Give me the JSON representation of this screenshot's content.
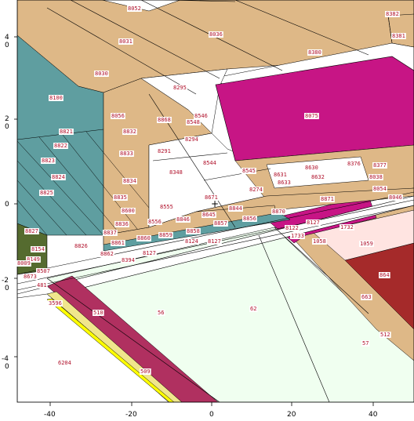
{
  "x_axis": {
    "ticks": [
      "-40",
      "-20",
      "0",
      "20",
      "40"
    ]
  },
  "y_axis": {
    "ticks": [
      {
        "lines": [
          "4",
          "0"
        ]
      },
      {
        "lines": [
          "2",
          "0"
        ]
      },
      {
        "lines": [
          "0"
        ]
      },
      {
        "lines": [
          "-2",
          "0"
        ]
      },
      {
        "lines": [
          "-4",
          "0"
        ]
      }
    ]
  },
  "cursor": {
    "symbol": "+"
  },
  "zone_colors": {
    "tan": "#deb887",
    "teal": "#5f9ea0",
    "magenta": "#c71585",
    "brown": "#a52a2a",
    "honeydew": "#f0fff0",
    "olive": "#556b2f",
    "yellow": "#ffff00",
    "maroon": "#b03060",
    "khaki": "#f0e68c",
    "lightpink": "#ffe4e1",
    "white": "#ffffff"
  },
  "zones": {
    "z8052": "8052",
    "z8382": "8382",
    "z8381": "8381",
    "z8031": "8031",
    "z8036": "8036",
    "z8380": "8380",
    "z8030": "8030",
    "z8100": "8100",
    "z8295": "8295",
    "z8075": "8075",
    "z8056": "8056",
    "z8868": "8868",
    "z8546": "8546",
    "z8548": "8548",
    "z8832": "8832",
    "z8821": "8821",
    "z8294": "8294",
    "z8822": "8822",
    "z8833": "8833",
    "z8291": "8291",
    "z8823": "8823",
    "z8544": "8544",
    "z8348": "8348",
    "z8376": "8376",
    "z8377": "8377",
    "z8545": "8545",
    "z8631": "8631",
    "z8630": "8630",
    "z8633": "8633",
    "z8632": "8632",
    "z8038": "8038",
    "z8824": "8824",
    "z8834": "8834",
    "z8274": "8274",
    "z8054": "8054",
    "z8825": "8825",
    "z8835": "8835",
    "z8871a": "8871",
    "z8671": "8671",
    "z8871b": "8871",
    "z8046": "8046",
    "z8555": "8555",
    "z8600": "8600",
    "z8844": "8844",
    "z8870": "8870",
    "z8645": "8645",
    "z8846": "8846",
    "z8856": "8856",
    "z8827": "8827",
    "z8836": "8836",
    "z8556": "8556",
    "z8857": "8857",
    "z8127a": "8127",
    "z8122": "8122",
    "z1732": "1732",
    "z8837": "8837",
    "z8858": "8858",
    "z1733": "1733",
    "z8860": "8860",
    "z8859": "8859",
    "z1058": "1058",
    "z8154": "8154",
    "z8826": "8826",
    "z8861": "8861",
    "z8124": "8124",
    "z8127b": "8127",
    "z1059": "1059",
    "z8862": "8862",
    "z8127c": "8127",
    "z8149": "8149",
    "z8394": "8394",
    "z8009": "8009",
    "z8507": "8507",
    "z8673": "8673",
    "z864": "864",
    "z481": "481",
    "z663": "663",
    "z3596": "3596",
    "z510": "510",
    "z56": "56",
    "z62": "62",
    "z512": "512",
    "z57": "57",
    "z6204": "6204",
    "z509": "509"
  }
}
